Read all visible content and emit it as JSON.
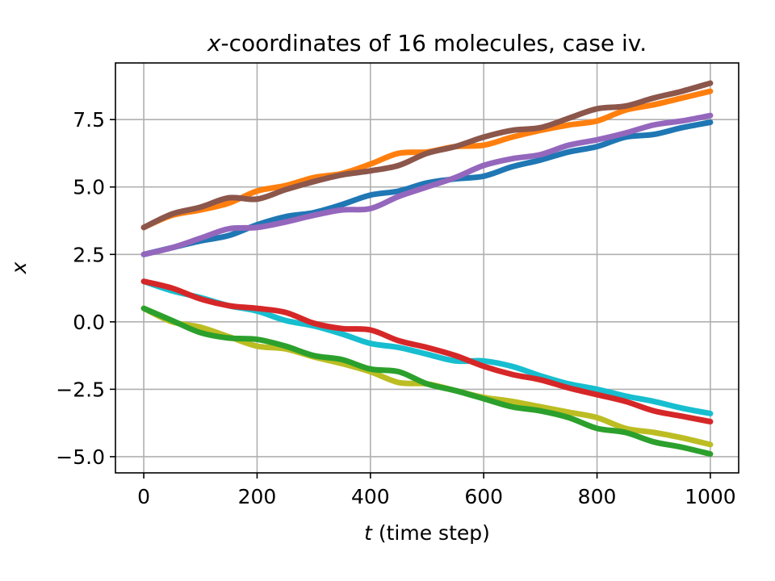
{
  "chart_data": {
    "type": "line",
    "title_var": "x",
    "title_rest": "-coordinates of 16 molecules, case iv.",
    "xlabel_var": "t",
    "xlabel_rest": " (time step)",
    "ylabel": "x",
    "xlim": [
      -50,
      1050
    ],
    "ylim": [
      -5.6,
      9.6
    ],
    "xticks": [
      0,
      200,
      400,
      600,
      800,
      1000
    ],
    "xtick_labels": [
      "0",
      "200",
      "400",
      "600",
      "800",
      "1000"
    ],
    "yticks": [
      -5.0,
      -2.5,
      0.0,
      2.5,
      5.0,
      7.5
    ],
    "ytick_labels": [
      "−5.0",
      "−2.5",
      "0.0",
      "2.5",
      "5.0",
      "7.5"
    ],
    "grid": true,
    "x": [
      0,
      50,
      100,
      150,
      200,
      250,
      300,
      350,
      400,
      450,
      500,
      550,
      600,
      650,
      700,
      750,
      800,
      850,
      900,
      950,
      1000
    ],
    "series": [
      {
        "color": "#1f77b4",
        "values": [
          2.5,
          2.75,
          3.0,
          3.2,
          3.6,
          3.9,
          4.05,
          4.35,
          4.7,
          4.85,
          5.15,
          5.3,
          5.4,
          5.75,
          6.0,
          6.3,
          6.5,
          6.85,
          6.95,
          7.2,
          7.4
        ]
      },
      {
        "color": "#ff7f0e",
        "values": [
          3.5,
          3.95,
          4.15,
          4.4,
          4.85,
          5.05,
          5.35,
          5.5,
          5.85,
          6.25,
          6.3,
          6.5,
          6.55,
          6.85,
          7.1,
          7.3,
          7.45,
          7.85,
          8.05,
          8.3,
          8.55
        ]
      },
      {
        "color": "#9467bd",
        "values": [
          2.5,
          2.75,
          3.1,
          3.45,
          3.5,
          3.7,
          3.95,
          4.15,
          4.2,
          4.65,
          5.0,
          5.35,
          5.8,
          6.05,
          6.2,
          6.55,
          6.75,
          7.0,
          7.3,
          7.45,
          7.65
        ]
      },
      {
        "color": "#8c564b",
        "values": [
          3.5,
          4.0,
          4.25,
          4.6,
          4.55,
          4.9,
          5.2,
          5.45,
          5.6,
          5.8,
          6.25,
          6.5,
          6.85,
          7.1,
          7.2,
          7.55,
          7.9,
          8.0,
          8.3,
          8.55,
          8.85
        ]
      },
      {
        "color": "#17becf",
        "values": [
          1.5,
          1.15,
          0.9,
          0.6,
          0.4,
          0.05,
          -0.15,
          -0.45,
          -0.8,
          -0.95,
          -1.2,
          -1.45,
          -1.45,
          -1.65,
          -2.0,
          -2.3,
          -2.5,
          -2.75,
          -2.95,
          -3.2,
          -3.4
        ]
      },
      {
        "color": "#d62728",
        "values": [
          1.5,
          1.25,
          0.85,
          0.6,
          0.5,
          0.35,
          -0.05,
          -0.25,
          -0.3,
          -0.7,
          -0.95,
          -1.25,
          -1.65,
          -1.95,
          -2.15,
          -2.45,
          -2.7,
          -2.95,
          -3.3,
          -3.5,
          -3.7
        ]
      },
      {
        "color": "#bcbd22",
        "values": [
          0.5,
          0.0,
          -0.2,
          -0.55,
          -0.9,
          -1.0,
          -1.3,
          -1.55,
          -1.85,
          -2.25,
          -2.3,
          -2.55,
          -2.8,
          -2.95,
          -3.15,
          -3.35,
          -3.55,
          -3.95,
          -4.1,
          -4.3,
          -4.55
        ]
      },
      {
        "color": "#2ca02c",
        "values": [
          0.5,
          0.05,
          -0.4,
          -0.6,
          -0.65,
          -0.9,
          -1.25,
          -1.4,
          -1.75,
          -1.85,
          -2.3,
          -2.55,
          -2.85,
          -3.15,
          -3.3,
          -3.55,
          -3.95,
          -4.1,
          -4.45,
          -4.65,
          -4.9
        ]
      }
    ]
  }
}
